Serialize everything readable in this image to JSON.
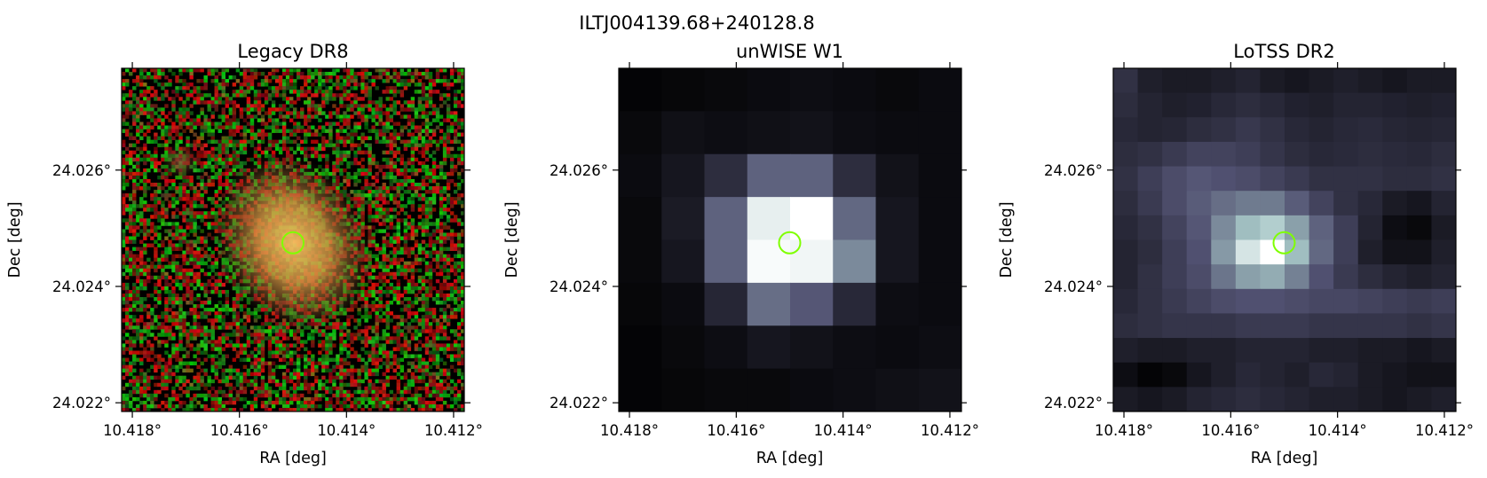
{
  "figure": {
    "title": "ILTJ004139.68+240128.8"
  },
  "chart_data": [
    {
      "type": "heatmap",
      "title": "Legacy DR8",
      "image_kind": "rgb-noise",
      "xlabel": "RA [deg]",
      "ylabel": "Dec [deg]",
      "xlim": [
        10.4182,
        10.4118
      ],
      "ylim": [
        24.02185,
        24.02775
      ],
      "xticks": [
        {
          "value": 10.418,
          "label": "10.418°"
        },
        {
          "value": 10.416,
          "label": "10.416°"
        },
        {
          "value": 10.414,
          "label": "10.414°"
        },
        {
          "value": 10.412,
          "label": "10.412°"
        }
      ],
      "yticks": [
        {
          "value": 24.026,
          "label": "24.026°"
        },
        {
          "value": 24.024,
          "label": "24.024°"
        },
        {
          "value": 24.022,
          "label": "24.022°"
        }
      ],
      "marker": {
        "ra": 10.415,
        "dec": 24.02475,
        "shape": "circle",
        "color": "#7fff00"
      }
    },
    {
      "type": "heatmap",
      "title": "unWISE W1",
      "image_kind": "grid",
      "colormap": "bone",
      "xlabel": "RA [deg]",
      "ylabel": "Dec [deg]",
      "xlim": [
        10.4182,
        10.4118
      ],
      "ylim": [
        24.02185,
        24.02775
      ],
      "xticks": [
        {
          "value": 10.418,
          "label": "10.418°"
        },
        {
          "value": 10.416,
          "label": "10.416°"
        },
        {
          "value": 10.414,
          "label": "10.414°"
        },
        {
          "value": 10.412,
          "label": "10.412°"
        }
      ],
      "yticks": [
        {
          "value": 24.026,
          "label": "24.026°"
        },
        {
          "value": 24.024,
          "label": "24.024°"
        },
        {
          "value": 24.022,
          "label": "24.022°"
        }
      ],
      "marker": {
        "ra": 10.415,
        "dec": 24.02475,
        "shape": "circle",
        "color": "#7fff00"
      },
      "grid_values": [
        [
          0.02,
          0.03,
          0.04,
          0.05,
          0.06,
          0.05,
          0.04,
          0.05
        ],
        [
          0.04,
          0.07,
          0.06,
          0.07,
          0.08,
          0.06,
          0.05,
          0.05
        ],
        [
          0.05,
          0.1,
          0.2,
          0.42,
          0.42,
          0.2,
          0.08,
          0.05
        ],
        [
          0.04,
          0.12,
          0.42,
          0.93,
          1.0,
          0.44,
          0.1,
          0.05
        ],
        [
          0.04,
          0.1,
          0.42,
          0.98,
          0.96,
          0.55,
          0.1,
          0.05
        ],
        [
          0.03,
          0.05,
          0.17,
          0.46,
          0.38,
          0.18,
          0.06,
          0.05
        ],
        [
          0.02,
          0.04,
          0.06,
          0.1,
          0.08,
          0.06,
          0.05,
          0.06
        ],
        [
          0.02,
          0.03,
          0.04,
          0.04,
          0.05,
          0.06,
          0.07,
          0.08
        ]
      ]
    },
    {
      "type": "heatmap",
      "title": "LoTSS DR2",
      "image_kind": "grid",
      "colormap": "bone",
      "xlabel": "RA [deg]",
      "ylabel": "Dec [deg]",
      "xlim": [
        10.4182,
        10.4118
      ],
      "ylim": [
        24.02185,
        24.02775
      ],
      "xticks": [
        {
          "value": 10.418,
          "label": "10.418°"
        },
        {
          "value": 10.416,
          "label": "10.416°"
        },
        {
          "value": 10.414,
          "label": "10.414°"
        },
        {
          "value": 10.412,
          "label": "10.412°"
        }
      ],
      "yticks": [
        {
          "value": 24.026,
          "label": "24.026°"
        },
        {
          "value": 24.024,
          "label": "24.024°"
        },
        {
          "value": 24.022,
          "label": "24.022°"
        }
      ],
      "marker": {
        "ra": 10.415,
        "dec": 24.02475,
        "shape": "circle",
        "color": "#7fff00"
      },
      "grid_values": [
        [
          0.22,
          0.14,
          0.12,
          0.12,
          0.14,
          0.16,
          0.12,
          0.1,
          0.12,
          0.14,
          0.12,
          0.1,
          0.12,
          0.12
        ],
        [
          0.2,
          0.16,
          0.14,
          0.15,
          0.18,
          0.2,
          0.18,
          0.15,
          0.14,
          0.16,
          0.16,
          0.15,
          0.14,
          0.15
        ],
        [
          0.18,
          0.16,
          0.17,
          0.2,
          0.22,
          0.25,
          0.22,
          0.18,
          0.16,
          0.18,
          0.19,
          0.17,
          0.16,
          0.17
        ],
        [
          0.2,
          0.22,
          0.26,
          0.3,
          0.3,
          0.28,
          0.24,
          0.2,
          0.18,
          0.19,
          0.2,
          0.19,
          0.18,
          0.2
        ],
        [
          0.22,
          0.28,
          0.34,
          0.38,
          0.36,
          0.34,
          0.3,
          0.26,
          0.22,
          0.22,
          0.22,
          0.2,
          0.2,
          0.22
        ],
        [
          0.2,
          0.26,
          0.34,
          0.4,
          0.46,
          0.5,
          0.5,
          0.4,
          0.3,
          0.22,
          0.18,
          0.12,
          0.1,
          0.16
        ],
        [
          0.18,
          0.22,
          0.3,
          0.38,
          0.55,
          0.72,
          0.78,
          0.62,
          0.42,
          0.28,
          0.16,
          0.06,
          0.04,
          0.12
        ],
        [
          0.16,
          0.2,
          0.28,
          0.36,
          0.6,
          0.88,
          1.0,
          0.72,
          0.44,
          0.28,
          0.14,
          0.08,
          0.08,
          0.14
        ],
        [
          0.16,
          0.22,
          0.28,
          0.34,
          0.48,
          0.62,
          0.66,
          0.52,
          0.36,
          0.26,
          0.2,
          0.16,
          0.14,
          0.16
        ],
        [
          0.18,
          0.22,
          0.26,
          0.3,
          0.34,
          0.36,
          0.36,
          0.34,
          0.32,
          0.32,
          0.3,
          0.28,
          0.26,
          0.28
        ],
        [
          0.2,
          0.22,
          0.24,
          0.24,
          0.24,
          0.26,
          0.26,
          0.26,
          0.24,
          0.24,
          0.24,
          0.24,
          0.22,
          0.24
        ],
        [
          0.14,
          0.12,
          0.12,
          0.14,
          0.14,
          0.16,
          0.16,
          0.16,
          0.14,
          0.14,
          0.12,
          0.12,
          0.1,
          0.12
        ],
        [
          0.06,
          0.02,
          0.04,
          0.1,
          0.14,
          0.18,
          0.16,
          0.14,
          0.18,
          0.16,
          0.12,
          0.1,
          0.08,
          0.08
        ],
        [
          0.12,
          0.1,
          0.12,
          0.16,
          0.18,
          0.2,
          0.18,
          0.16,
          0.14,
          0.14,
          0.12,
          0.1,
          0.12,
          0.14
        ]
      ]
    }
  ]
}
